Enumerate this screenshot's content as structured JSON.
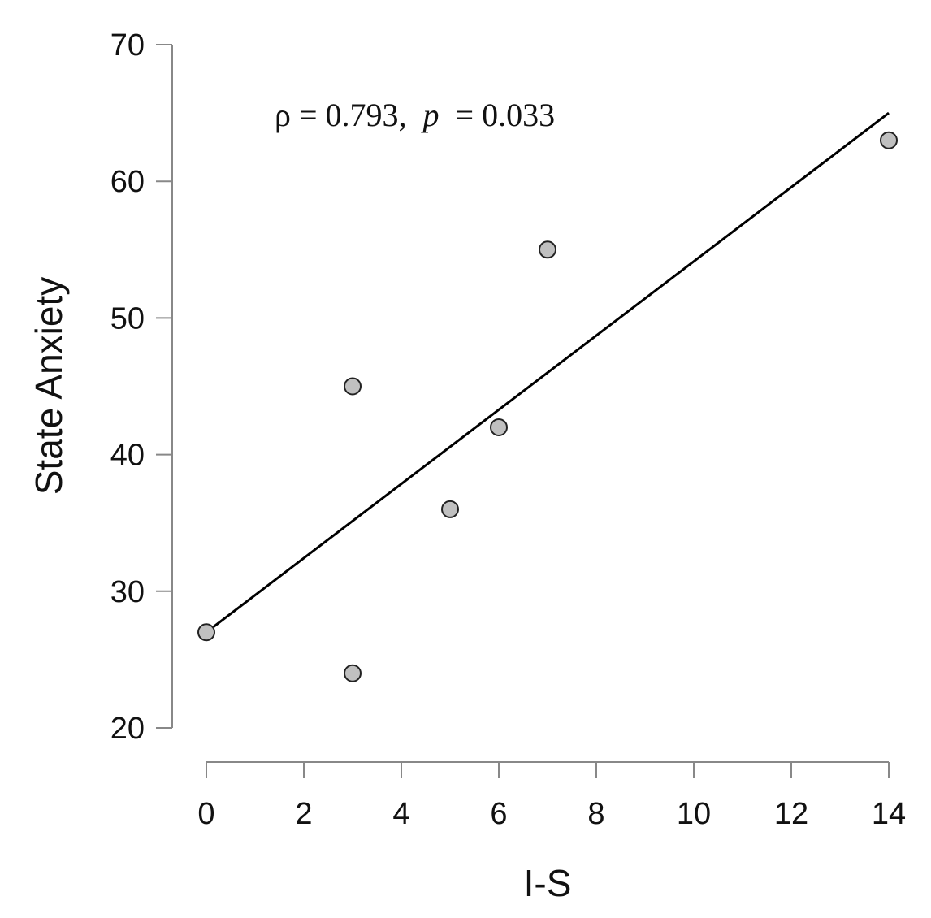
{
  "chart_data": {
    "type": "scatter",
    "title": "",
    "xlabel": "I-S",
    "ylabel": "State Anxiety",
    "xlim": [
      0,
      14
    ],
    "ylim": [
      20,
      70
    ],
    "xticks": [
      0,
      2,
      4,
      6,
      8,
      10,
      12,
      14
    ],
    "yticks": [
      20,
      30,
      40,
      50,
      60,
      70
    ],
    "points": [
      {
        "x": 0,
        "y": 27
      },
      {
        "x": 3,
        "y": 24
      },
      {
        "x": 3,
        "y": 45
      },
      {
        "x": 5,
        "y": 36
      },
      {
        "x": 6,
        "y": 42
      },
      {
        "x": 7,
        "y": 55
      },
      {
        "x": 14,
        "y": 63
      }
    ],
    "fit_line": {
      "x": [
        0,
        14
      ],
      "y": [
        27,
        65
      ]
    },
    "annotation": {
      "rho_part": "ρ = 0.793,",
      "p_symbol": "p",
      "p_part": "= 0.033"
    },
    "grid": false,
    "colors": {
      "point_fill": "#c0c0c0",
      "point_stroke": "#222222",
      "line": "#000000",
      "axis": "#888888"
    }
  }
}
